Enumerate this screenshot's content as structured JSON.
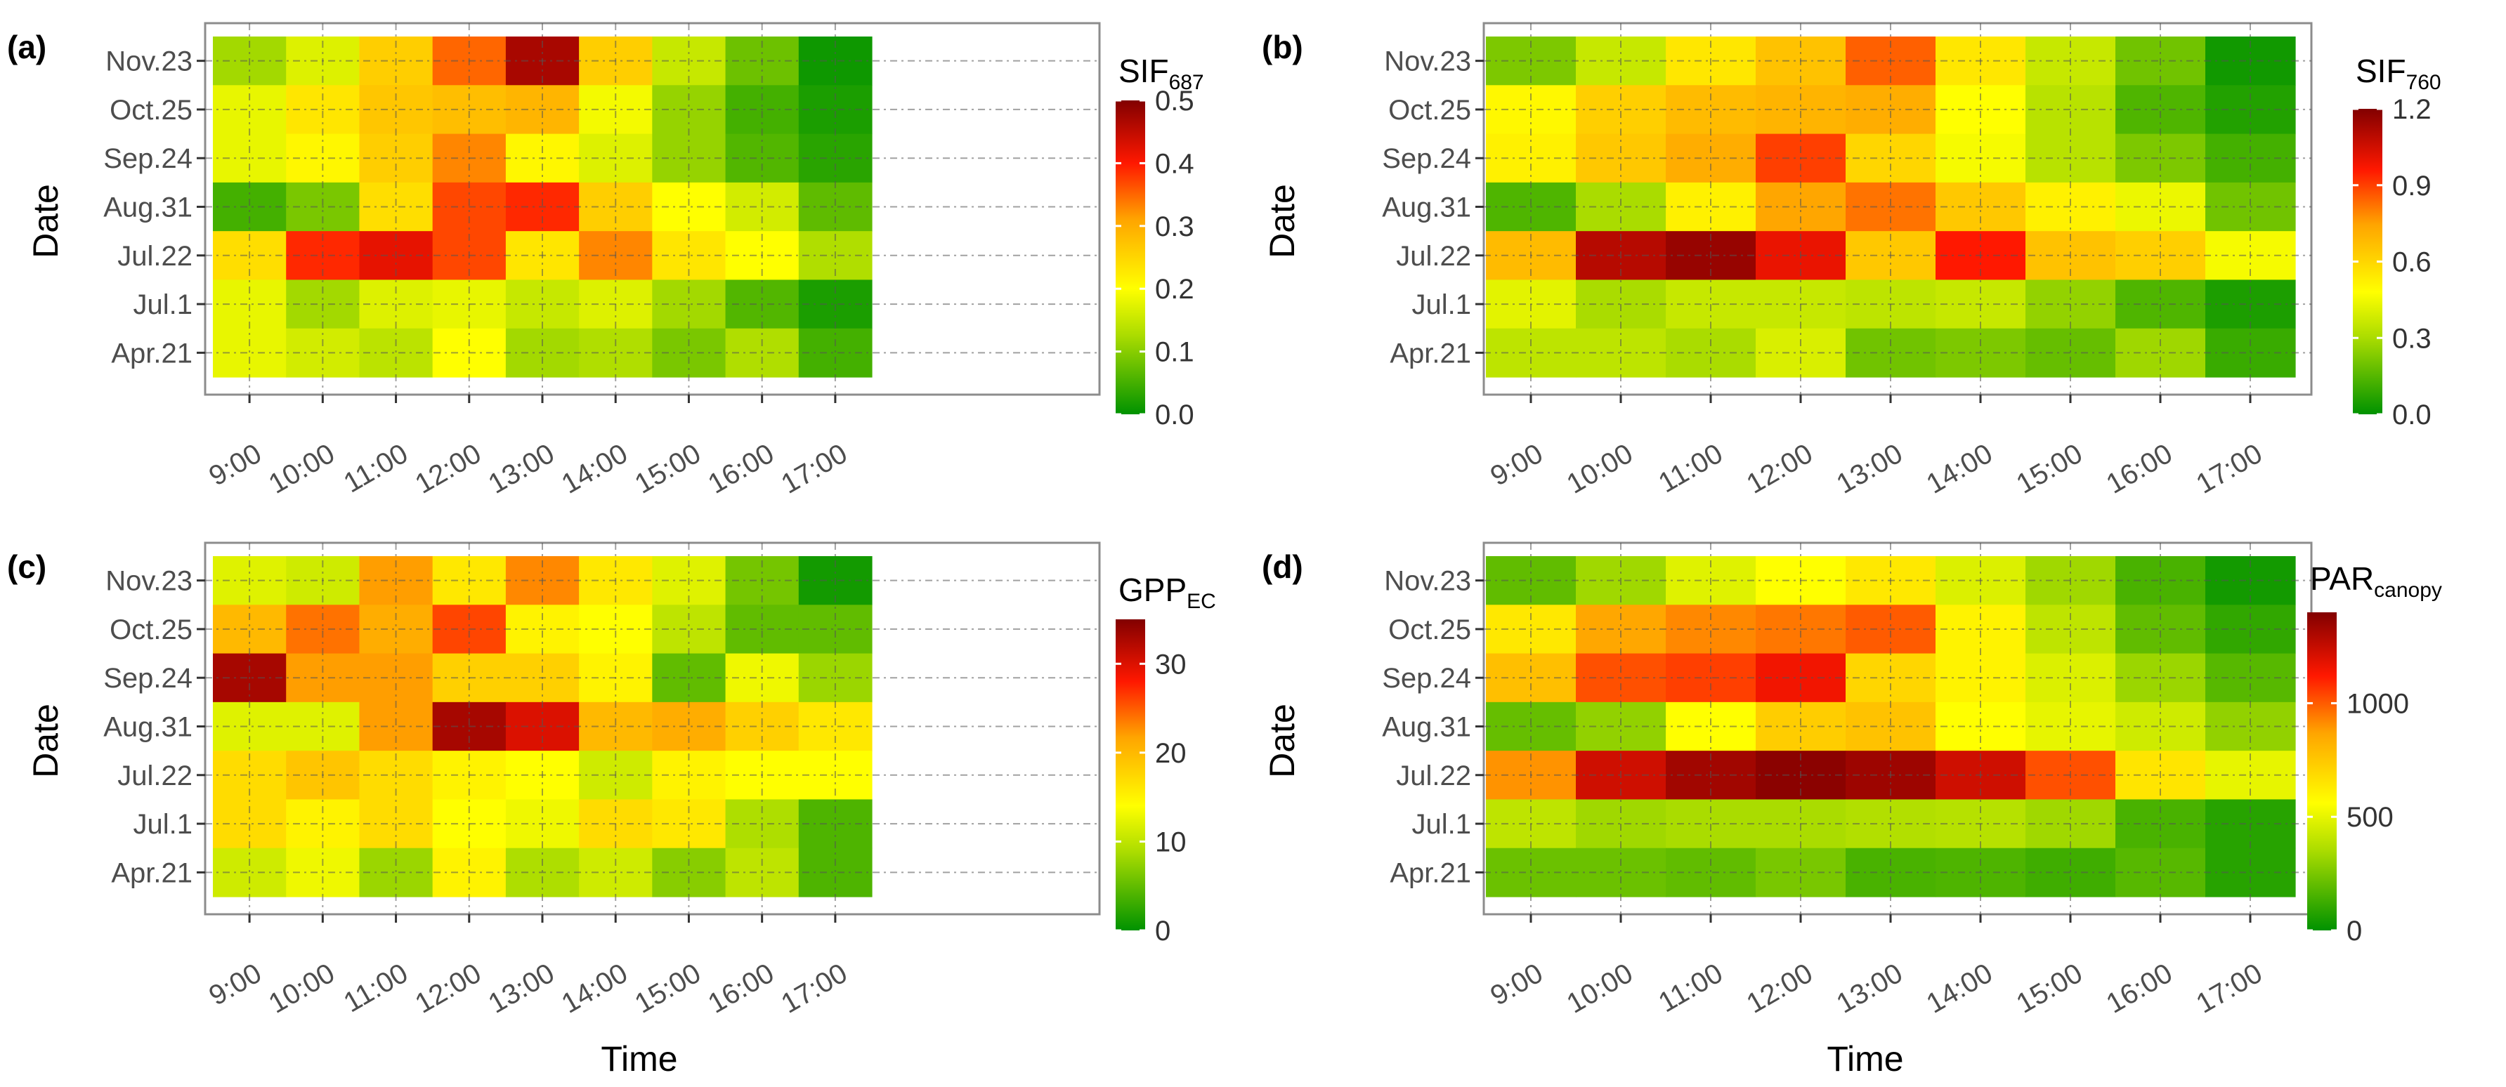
{
  "figure": {
    "x_axis_title": "Time",
    "y_axis_title": "Date"
  },
  "chart_data": [
    {
      "type": "heatmap",
      "panel_label": "(a)",
      "legend": {
        "title_main": "SIF",
        "title_sub": "687",
        "ticks": [
          "0.0",
          "0.1",
          "0.2",
          "0.3",
          "0.4",
          "0.5"
        ],
        "tick_values": [
          0,
          0.1,
          0.2,
          0.3,
          0.4,
          0.5
        ],
        "range": [
          0,
          0.5
        ]
      },
      "x": [
        "9:00",
        "10:00",
        "11:00",
        "12:00",
        "13:00",
        "14:00",
        "15:00",
        "16:00",
        "17:00"
      ],
      "y": [
        "Nov.23",
        "Oct.25",
        "Sep.24",
        "Aug.31",
        "Jul.22",
        "Jul.1",
        "Apr.21"
      ],
      "values": [
        [
          0.12,
          0.17,
          0.26,
          0.35,
          0.47,
          0.26,
          0.15,
          0.08,
          0.01
        ],
        [
          0.18,
          0.23,
          0.27,
          0.28,
          0.29,
          0.19,
          0.11,
          0.05,
          0.02
        ],
        [
          0.18,
          0.21,
          0.26,
          0.33,
          0.21,
          0.17,
          0.11,
          0.06,
          0.03
        ],
        [
          0.05,
          0.09,
          0.24,
          0.37,
          0.39,
          0.26,
          0.2,
          0.16,
          0.07
        ],
        [
          0.24,
          0.39,
          0.42,
          0.37,
          0.23,
          0.33,
          0.23,
          0.2,
          0.13
        ],
        [
          0.18,
          0.12,
          0.17,
          0.18,
          0.15,
          0.17,
          0.12,
          0.06,
          0.02
        ],
        [
          0.18,
          0.16,
          0.14,
          0.2,
          0.12,
          0.13,
          0.09,
          0.13,
          0.05
        ]
      ]
    },
    {
      "type": "heatmap",
      "panel_label": "(b)",
      "legend": {
        "title_main": "SIF",
        "title_sub": "760",
        "ticks": [
          "0.0",
          "0.3",
          "0.6",
          "0.9",
          "1.2"
        ],
        "tick_values": [
          0,
          0.3,
          0.6,
          0.9,
          1.2
        ],
        "range": [
          0,
          1.2
        ]
      },
      "x": [
        "9:00",
        "10:00",
        "11:00",
        "12:00",
        "13:00",
        "14:00",
        "15:00",
        "16:00",
        "17:00"
      ],
      "y": [
        "Nov.23",
        "Oct.25",
        "Sep.24",
        "Aug.31",
        "Jul.22",
        "Jul.1",
        "Apr.21"
      ],
      "values": [
        [
          0.22,
          0.36,
          0.55,
          0.66,
          0.85,
          0.55,
          0.36,
          0.2,
          0.03
        ],
        [
          0.5,
          0.62,
          0.68,
          0.7,
          0.72,
          0.48,
          0.33,
          0.14,
          0.06
        ],
        [
          0.52,
          0.64,
          0.72,
          0.9,
          0.6,
          0.46,
          0.33,
          0.22,
          0.12
        ],
        [
          0.14,
          0.3,
          0.52,
          0.74,
          0.82,
          0.64,
          0.52,
          0.44,
          0.2
        ],
        [
          0.68,
          1.1,
          1.16,
          1.0,
          0.64,
          0.96,
          0.66,
          0.62,
          0.46
        ],
        [
          0.42,
          0.3,
          0.36,
          0.36,
          0.34,
          0.36,
          0.26,
          0.14,
          0.05
        ],
        [
          0.34,
          0.34,
          0.3,
          0.4,
          0.2,
          0.22,
          0.18,
          0.28,
          0.1
        ]
      ]
    },
    {
      "type": "heatmap",
      "panel_label": "(c)",
      "legend": {
        "title_main": "GPP",
        "title_sub": "EC",
        "ticks": [
          "0",
          "10",
          "20",
          "30"
        ],
        "tick_values": [
          0,
          10,
          20,
          30
        ],
        "range": [
          0,
          35
        ]
      },
      "x": [
        "9:00",
        "10:00",
        "11:00",
        "12:00",
        "13:00",
        "14:00",
        "15:00",
        "16:00",
        "17:00"
      ],
      "y": [
        "Nov.23",
        "Oct.25",
        "Sep.24",
        "Aug.31",
        "Jul.22",
        "Jul.1",
        "Apr.21"
      ],
      "values": [
        [
          12,
          11,
          22,
          16,
          23,
          16,
          12,
          6,
          1
        ],
        [
          20,
          24,
          21,
          26,
          15,
          14,
          10,
          5,
          5
        ],
        [
          33,
          22,
          22,
          18,
          18,
          15,
          5,
          13,
          8
        ],
        [
          12,
          12,
          22,
          33,
          30,
          20,
          21,
          18,
          16
        ],
        [
          17,
          19,
          17,
          15,
          14,
          11,
          15,
          14,
          14
        ],
        [
          17,
          15,
          17,
          14,
          13,
          17,
          16,
          9,
          4
        ],
        [
          11,
          13,
          8,
          15,
          9,
          11,
          7,
          10,
          4
        ]
      ]
    },
    {
      "type": "heatmap",
      "panel_label": "(d)",
      "legend": {
        "title_main": "PAR",
        "title_sub": "canopy",
        "ticks": [
          "0",
          "500",
          "1000"
        ],
        "tick_values": [
          0,
          500,
          1000
        ],
        "range": [
          0,
          1400
        ]
      },
      "x": [
        "9:00",
        "10:00",
        "11:00",
        "12:00",
        "13:00",
        "14:00",
        "15:00",
        "16:00",
        "17:00"
      ],
      "y": [
        "Nov.23",
        "Oct.25",
        "Sep.24",
        "Aug.31",
        "Jul.22",
        "Jul.1",
        "Apr.21"
      ],
      "values": [
        [
          200,
          330,
          480,
          560,
          640,
          470,
          330,
          150,
          40
        ],
        [
          640,
          860,
          920,
          950,
          1000,
          600,
          400,
          200,
          100
        ],
        [
          780,
          1020,
          1050,
          1150,
          700,
          600,
          470,
          320,
          180
        ],
        [
          210,
          300,
          560,
          730,
          770,
          560,
          500,
          440,
          300
        ],
        [
          900,
          1230,
          1330,
          1380,
          1340,
          1230,
          1020,
          650,
          500
        ],
        [
          400,
          330,
          350,
          350,
          370,
          380,
          330,
          150,
          80
        ],
        [
          220,
          220,
          200,
          250,
          150,
          160,
          130,
          180,
          80
        ]
      ]
    }
  ]
}
